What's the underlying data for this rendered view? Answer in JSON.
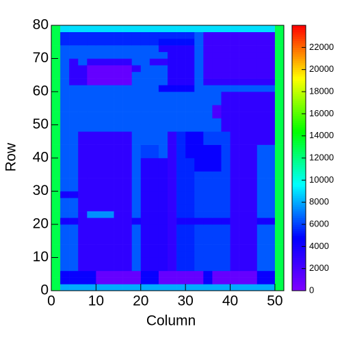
{
  "chart_data": {
    "type": "heatmap",
    "xlabel": "Column",
    "ylabel": "Row",
    "xlim": [
      0,
      52
    ],
    "ylim": [
      0,
      80
    ],
    "xticks": [
      0,
      10,
      20,
      30,
      40,
      50
    ],
    "yticks": [
      0,
      10,
      20,
      30,
      40,
      50,
      60,
      70,
      80
    ],
    "zlim": [
      0,
      24000
    ],
    "zticks": [
      0,
      2000,
      4000,
      6000,
      8000,
      10000,
      12000,
      14000,
      16000,
      18000,
      20000,
      22000
    ],
    "colorscale": [
      "#8000ff",
      "#0000ff",
      "#00ffff",
      "#00ff00",
      "#ffff00",
      "#ff0000"
    ],
    "z": [
      [
        13000,
        8000,
        8000,
        8000,
        8000,
        8000,
        8000,
        8000,
        8000,
        8000,
        8000,
        8000,
        8000,
        8000,
        8000,
        8000,
        8000,
        8000,
        8000,
        8000,
        8000,
        8000,
        8000,
        8000,
        8000,
        13000
      ],
      [
        13000,
        4500,
        4500,
        4500,
        4500,
        1000,
        1000,
        1000,
        1000,
        1000,
        4500,
        4500,
        1000,
        1000,
        1000,
        1000,
        1000,
        4500,
        1000,
        1000,
        1000,
        1000,
        1000,
        4500,
        4500,
        13000
      ],
      [
        13000,
        4500,
        4500,
        4500,
        4500,
        1000,
        1000,
        1000,
        1000,
        1000,
        4500,
        4500,
        1000,
        1000,
        1000,
        1000,
        1000,
        4500,
        1000,
        1000,
        1000,
        1000,
        1000,
        4500,
        4500,
        13000
      ],
      [
        13000,
        6500,
        6500,
        3000,
        3000,
        3000,
        3000,
        3000,
        3000,
        6500,
        3500,
        3500,
        3500,
        3000,
        5500,
        5500,
        6000,
        6000,
        6000,
        6000,
        3000,
        3000,
        3000,
        6500,
        6500,
        13000
      ],
      [
        13000,
        6500,
        6500,
        3000,
        3000,
        3000,
        3000,
        3000,
        3000,
        6500,
        3500,
        3500,
        3500,
        3000,
        5500,
        5500,
        6000,
        6000,
        6000,
        6000,
        3000,
        3000,
        3000,
        6500,
        6500,
        13000
      ],
      [
        13000,
        6500,
        6500,
        3000,
        3000,
        3000,
        3000,
        3000,
        3000,
        6500,
        3500,
        3500,
        3500,
        3000,
        5500,
        5500,
        6000,
        6000,
        6000,
        6000,
        3000,
        3000,
        3000,
        6500,
        6500,
        13000
      ],
      [
        13000,
        6500,
        6500,
        3000,
        3000,
        3000,
        3000,
        3000,
        3000,
        6500,
        3500,
        3500,
        3500,
        3000,
        5500,
        5500,
        6000,
        6000,
        6000,
        6000,
        3000,
        3000,
        3000,
        6500,
        6500,
        13000
      ],
      [
        13000,
        6500,
        6500,
        3000,
        3000,
        3000,
        3000,
        3000,
        3000,
        6500,
        3500,
        3500,
        3500,
        3000,
        5500,
        5500,
        6000,
        6000,
        6000,
        6000,
        3000,
        3000,
        3000,
        6500,
        6500,
        13000
      ],
      [
        13000,
        6500,
        6500,
        3000,
        3000,
        3000,
        3000,
        3000,
        3000,
        6500,
        3500,
        3500,
        3500,
        3000,
        5500,
        5500,
        6000,
        6000,
        6000,
        6000,
        3000,
        3000,
        3000,
        6500,
        6500,
        13000
      ],
      [
        13000,
        6500,
        6500,
        3000,
        3000,
        3000,
        3000,
        3000,
        3000,
        6500,
        3500,
        3500,
        3500,
        3000,
        5500,
        5500,
        6000,
        6000,
        6000,
        6000,
        3000,
        3000,
        3000,
        6500,
        6500,
        13000
      ],
      [
        13000,
        4000,
        4000,
        3000,
        3000,
        3000,
        3000,
        3000,
        3000,
        4000,
        3500,
        3500,
        3500,
        3000,
        4000,
        4000,
        4000,
        4000,
        4000,
        4000,
        3000,
        3000,
        3000,
        4000,
        4000,
        13000
      ],
      [
        13000,
        6500,
        6500,
        3000,
        7500,
        7500,
        7500,
        3000,
        3000,
        6500,
        3500,
        3500,
        3500,
        3000,
        5500,
        5500,
        6000,
        6000,
        6000,
        6000,
        3000,
        3000,
        3000,
        6500,
        6500,
        13000
      ],
      [
        13000,
        6500,
        6500,
        3000,
        3000,
        3000,
        3000,
        3000,
        3000,
        6500,
        3500,
        3500,
        3500,
        3000,
        5500,
        5500,
        6000,
        6000,
        6000,
        6000,
        3000,
        3000,
        3000,
        6500,
        6500,
        13000
      ],
      [
        13000,
        6500,
        6500,
        3000,
        3000,
        3000,
        3000,
        3000,
        3000,
        6500,
        3500,
        3500,
        3500,
        3000,
        5500,
        5500,
        6000,
        6000,
        6000,
        6000,
        3000,
        3000,
        3000,
        6500,
        6500,
        13000
      ],
      [
        13000,
        4000,
        4000,
        3000,
        3000,
        3000,
        3000,
        3000,
        3000,
        6500,
        3500,
        3500,
        3500,
        3000,
        5500,
        5500,
        6000,
        6000,
        6000,
        6000,
        3000,
        3000,
        3000,
        6500,
        6500,
        13000
      ],
      [
        13000,
        6500,
        6500,
        3000,
        3000,
        3000,
        3000,
        3000,
        3000,
        6500,
        3500,
        3500,
        3500,
        3000,
        5500,
        5500,
        6000,
        6000,
        6000,
        6000,
        3000,
        3000,
        3000,
        6500,
        6500,
        13000
      ],
      [
        13000,
        6500,
        6500,
        3000,
        3000,
        3000,
        3000,
        3000,
        3000,
        6500,
        3500,
        3500,
        3500,
        3000,
        5500,
        5500,
        6000,
        6000,
        6000,
        6000,
        3000,
        3000,
        3000,
        6500,
        6500,
        13000
      ],
      [
        13000,
        6500,
        6500,
        3000,
        3000,
        3000,
        3000,
        3000,
        3000,
        6500,
        3500,
        3500,
        3500,
        3000,
        5500,
        5500,
        6000,
        6000,
        6000,
        6000,
        3000,
        3000,
        3000,
        6500,
        6500,
        13000
      ],
      [
        13000,
        6500,
        6500,
        3000,
        3000,
        3000,
        3000,
        3000,
        3000,
        6500,
        3500,
        3500,
        3500,
        3000,
        5500,
        5500,
        4500,
        4500,
        4500,
        6000,
        3000,
        3000,
        3000,
        6500,
        6500,
        13000
      ],
      [
        13000,
        6500,
        6500,
        3000,
        3000,
        3000,
        3000,
        3000,
        3000,
        6500,
        3500,
        3500,
        3500,
        3000,
        5500,
        5500,
        4500,
        4500,
        4500,
        6000,
        3000,
        3000,
        3000,
        6500,
        6500,
        13000
      ],
      [
        13000,
        6500,
        6500,
        3000,
        3000,
        3000,
        3000,
        3000,
        3000,
        6500,
        6000,
        6000,
        6500,
        3000,
        5500,
        4500,
        4500,
        4500,
        4500,
        6000,
        3000,
        3000,
        3000,
        6500,
        6500,
        13000
      ],
      [
        13000,
        6500,
        6500,
        3000,
        3000,
        3000,
        3000,
        3000,
        3000,
        6500,
        6000,
        6000,
        6500,
        3000,
        5500,
        4500,
        4500,
        4500,
        4500,
        6000,
        3000,
        3000,
        3000,
        6500,
        6500,
        13000
      ],
      [
        13000,
        6500,
        6500,
        3000,
        3000,
        3000,
        3000,
        3000,
        3000,
        6500,
        6500,
        6500,
        6500,
        3000,
        5500,
        4500,
        4500,
        6000,
        6000,
        6000,
        3000,
        3000,
        3000,
        3000,
        3000,
        13000
      ],
      [
        13000,
        6500,
        6500,
        3000,
        3000,
        3000,
        3000,
        3000,
        3000,
        6500,
        6500,
        6500,
        6500,
        3000,
        5500,
        4500,
        4500,
        6000,
        6000,
        6000,
        3000,
        3000,
        3000,
        3000,
        3000,
        13000
      ],
      [
        13000,
        6500,
        6500,
        6500,
        6500,
        6500,
        6500,
        6500,
        6500,
        6500,
        6500,
        6500,
        6500,
        6500,
        6500,
        6500,
        6500,
        6500,
        6500,
        3000,
        3000,
        3000,
        3000,
        3000,
        3000,
        13000
      ],
      [
        13000,
        6500,
        6500,
        6500,
        6500,
        6500,
        6500,
        6500,
        6500,
        6500,
        6500,
        6500,
        6500,
        6500,
        6500,
        6500,
        6500,
        6500,
        6500,
        3000,
        3000,
        3000,
        3000,
        3000,
        3000,
        13000
      ],
      [
        13000,
        6500,
        6500,
        6500,
        6500,
        6500,
        6500,
        6500,
        6500,
        6500,
        6500,
        6500,
        6500,
        6500,
        6500,
        6500,
        6500,
        6500,
        2000,
        3000,
        3000,
        3000,
        3000,
        3000,
        3000,
        13000
      ],
      [
        13000,
        6500,
        6500,
        6500,
        6500,
        6500,
        6500,
        6500,
        6500,
        6500,
        6500,
        6500,
        6500,
        6500,
        6500,
        6500,
        6500,
        6500,
        2000,
        3000,
        3000,
        3000,
        3000,
        3000,
        3000,
        13000
      ],
      [
        13000,
        6500,
        6500,
        6500,
        6500,
        6500,
        6500,
        6500,
        6500,
        6500,
        6500,
        6500,
        6500,
        6500,
        6500,
        6500,
        6500,
        6500,
        6500,
        3000,
        3000,
        3000,
        3000,
        3000,
        3000,
        13000
      ],
      [
        13000,
        6500,
        6500,
        6500,
        6500,
        6500,
        6500,
        6500,
        6500,
        6500,
        6500,
        6500,
        6500,
        6500,
        6500,
        6500,
        6500,
        6500,
        6500,
        3000,
        3000,
        3000,
        3000,
        3000,
        3000,
        13000
      ],
      [
        13000,
        6500,
        6500,
        6500,
        6500,
        6500,
        6500,
        6500,
        6500,
        6500,
        6500,
        6500,
        4500,
        4500,
        4500,
        4500,
        6500,
        6500,
        6500,
        6500,
        6500,
        6500,
        6500,
        6500,
        6500,
        13000
      ],
      [
        13000,
        6500,
        3000,
        3000,
        1000,
        1000,
        1000,
        1000,
        1000,
        6500,
        6500,
        6500,
        6500,
        3500,
        3500,
        3500,
        6500,
        3000,
        3000,
        3000,
        3000,
        3000,
        3000,
        3000,
        3000,
        13000
      ],
      [
        13000,
        6500,
        3000,
        3000,
        1000,
        1000,
        1000,
        1000,
        1000,
        6500,
        6500,
        6500,
        6500,
        3500,
        3500,
        3500,
        6500,
        2500,
        2500,
        2500,
        2500,
        2500,
        2500,
        2500,
        2500,
        13000
      ],
      [
        13000,
        6500,
        3000,
        3000,
        1000,
        1000,
        1000,
        1000,
        1000,
        3000,
        6500,
        6500,
        6500,
        3500,
        3500,
        3500,
        6500,
        2500,
        2500,
        2500,
        2500,
        2500,
        2500,
        2500,
        2500,
        13000
      ],
      [
        13000,
        6500,
        3000,
        6500,
        3000,
        3000,
        3000,
        3000,
        3000,
        6500,
        6500,
        3000,
        3000,
        3500,
        3500,
        3500,
        6500,
        2500,
        2500,
        2500,
        2500,
        2500,
        2500,
        2500,
        2500,
        13000
      ],
      [
        13000,
        6500,
        6500,
        6500,
        6500,
        6500,
        6500,
        6500,
        6500,
        6500,
        6500,
        6500,
        6500,
        3500,
        3500,
        3500,
        6500,
        2500,
        2500,
        2500,
        2500,
        2500,
        2500,
        2500,
        2500,
        13000
      ],
      [
        13000,
        6500,
        6500,
        6500,
        6500,
        6500,
        6500,
        6500,
        6500,
        6500,
        6500,
        6500,
        3500,
        3500,
        3500,
        3500,
        6500,
        2500,
        2500,
        2500,
        2500,
        2500,
        2500,
        2500,
        2500,
        13000
      ],
      [
        13000,
        5500,
        5500,
        5500,
        5500,
        5500,
        5500,
        5500,
        5500,
        5500,
        5500,
        5500,
        5000,
        5000,
        5000,
        5000,
        6500,
        2500,
        2500,
        2500,
        2500,
        2500,
        2500,
        2500,
        2500,
        13000
      ],
      [
        13000,
        5500,
        5500,
        5500,
        5500,
        5500,
        5500,
        5500,
        5500,
        5500,
        5500,
        5500,
        5500,
        5500,
        5500,
        5500,
        6500,
        2500,
        2500,
        2500,
        2500,
        2500,
        2500,
        2500,
        2500,
        13000
      ],
      [
        13000,
        9000,
        9000,
        9000,
        9000,
        9000,
        9000,
        9000,
        9000,
        9000,
        9000,
        9000,
        9000,
        9000,
        9000,
        9000,
        9000,
        9000,
        9000,
        9000,
        9000,
        9000,
        9000,
        9000,
        9000,
        13000
      ]
    ]
  }
}
